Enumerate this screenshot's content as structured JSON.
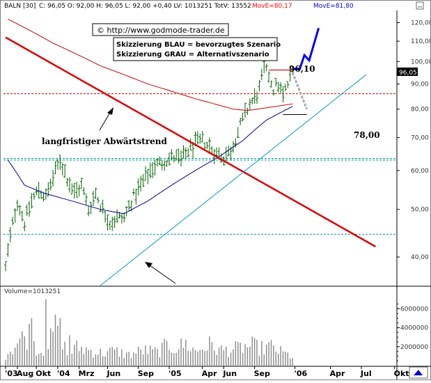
{
  "header": {
    "symbol_period": "BALN [30]",
    "ohlc": "C: 96,05 O: 92,00 H: 96,05 L: 92,00 +0,40 LV: 1013251 TotV: 13552",
    "ma1_label": "MovE=80,17",
    "ma2_label": "MovE=81,80",
    "ma1_color": "#ff0000",
    "ma2_color": "#0000cc"
  },
  "copyright": "© http://www.godmode-trader.de",
  "legend": {
    "line1": "Skizzierung BLAU = bevorzugtes Szenario",
    "line2": "Skizzierung GRAU = Alternativszenario"
  },
  "annotations": {
    "high_label": "96,10",
    "support_label": "78,00",
    "trend_label": "langfristiger Abwärtstrend"
  },
  "last_price_tag": "96,05",
  "volume_label": "Volume=1013251",
  "colors": {
    "price_bars": "#006400",
    "ma_red": "#cc0000",
    "ma_blue": "#000099",
    "downtrend": "#dd0000",
    "uptrend": "#0099cc",
    "scenario_blue": "#0000ff",
    "scenario_grey": "#aaaaaa",
    "dashed_red": "#cc0000",
    "dashed_teal": "#009999"
  },
  "chart_data": {
    "type": "ohlc",
    "price_axis": {
      "scale": "log",
      "ylim": [
        35,
        125
      ],
      "ticks": [
        40,
        50,
        60,
        70,
        80,
        90,
        100,
        110,
        120
      ],
      "tick_labels": [
        "40,00",
        "50,00",
        "60,00",
        "70,00",
        "80,00",
        "90,00",
        "100,00",
        "110,00",
        "120,00"
      ]
    },
    "volume_axis": {
      "ylim": [
        0,
        7500000
      ],
      "ticks": [
        2000000,
        4000000,
        6000000
      ],
      "tick_labels": [
        "2000000",
        "4000000",
        "6000000"
      ]
    },
    "x_axis": {
      "labels": [
        "'03",
        "Aug",
        "Okt",
        "'04",
        "Mrz",
        "Jun",
        "Sep",
        "'05",
        "Apr",
        "Jun",
        "Sep",
        "'06",
        "Apr",
        "Jul",
        "Okt"
      ],
      "label_weeks": [
        0,
        5,
        13,
        22,
        31,
        43,
        56,
        69,
        83,
        92,
        105,
        122,
        137,
        150,
        164
      ]
    },
    "price_anchors": [
      [
        0,
        38
      ],
      [
        2,
        44
      ],
      [
        5,
        52
      ],
      [
        8,
        47
      ],
      [
        11,
        52
      ],
      [
        14,
        55
      ],
      [
        17,
        53
      ],
      [
        20,
        58
      ],
      [
        23,
        63
      ],
      [
        26,
        58
      ],
      [
        29,
        54
      ],
      [
        32,
        56
      ],
      [
        35,
        50
      ],
      [
        38,
        54
      ],
      [
        41,
        50
      ],
      [
        44,
        47
      ],
      [
        47,
        48
      ],
      [
        50,
        48
      ],
      [
        53,
        52
      ],
      [
        56,
        55
      ],
      [
        59,
        58
      ],
      [
        62,
        61
      ],
      [
        65,
        62
      ],
      [
        68,
        63
      ],
      [
        71,
        64
      ],
      [
        74,
        63
      ],
      [
        77,
        66
      ],
      [
        80,
        68
      ],
      [
        83,
        69
      ],
      [
        86,
        67
      ],
      [
        89,
        65
      ],
      [
        92,
        64
      ],
      [
        95,
        66
      ],
      [
        97,
        70
      ],
      [
        99,
        74
      ],
      [
        101,
        78
      ],
      [
        103,
        82
      ],
      [
        105,
        84
      ],
      [
        107,
        88
      ],
      [
        109,
        96
      ],
      [
        111,
        94
      ],
      [
        113,
        88
      ],
      [
        115,
        90
      ],
      [
        117,
        85
      ],
      [
        119,
        90
      ],
      [
        121,
        96
      ]
    ],
    "volume_anchors": [
      [
        0,
        1200000
      ],
      [
        6,
        2800000
      ],
      [
        10,
        3500000
      ],
      [
        14,
        1500000
      ],
      [
        18,
        2200000
      ],
      [
        22,
        4800000
      ],
      [
        26,
        1200000
      ],
      [
        30,
        2000000
      ],
      [
        34,
        1800000
      ],
      [
        40,
        1400000
      ],
      [
        46,
        1600000
      ],
      [
        52,
        1200000
      ],
      [
        58,
        1700000
      ],
      [
        64,
        1500000
      ],
      [
        68,
        2200000
      ],
      [
        72,
        2000000
      ],
      [
        76,
        2400000
      ],
      [
        80,
        1600000
      ],
      [
        86,
        2300000
      ],
      [
        90,
        1700000
      ],
      [
        96,
        1800000
      ],
      [
        100,
        2000000
      ],
      [
        104,
        2200000
      ],
      [
        108,
        1900000
      ],
      [
        112,
        2100000
      ],
      [
        116,
        1500000
      ],
      [
        121,
        1000000
      ]
    ],
    "volume_spikes": [
      [
        11,
        5000000
      ],
      [
        17,
        7000000
      ],
      [
        27,
        3200000
      ]
    ],
    "moving_average_red": [
      [
        1,
        122
      ],
      [
        20,
        109
      ],
      [
        40,
        98
      ],
      [
        60,
        90
      ],
      [
        80,
        84
      ],
      [
        96,
        80
      ],
      [
        102,
        79.5
      ],
      [
        110,
        80.5
      ],
      [
        121,
        82
      ]
    ],
    "moving_average_blue": [
      [
        1,
        63
      ],
      [
        8,
        56
      ],
      [
        16,
        54
      ],
      [
        28,
        52
      ],
      [
        40,
        50
      ],
      [
        50,
        49
      ],
      [
        60,
        52
      ],
      [
        70,
        56
      ],
      [
        80,
        60
      ],
      [
        90,
        64
      ],
      [
        100,
        69
      ],
      [
        110,
        76
      ],
      [
        121,
        81
      ]
    ],
    "downtrend_line": [
      [
        0,
        112
      ],
      [
        156,
        42
      ]
    ],
    "uptrend_line": [
      [
        40,
        35
      ],
      [
        152,
        94
      ]
    ],
    "resistance_dashed_red": 86,
    "support_dashed_teal": [
      63.5,
      63,
      44.5
    ],
    "high_level": 96.1,
    "support_level": 78,
    "scenario_blue": [
      [
        121,
        96.5
      ],
      [
        124,
        96.5
      ],
      [
        126,
        103
      ],
      [
        128,
        100.5
      ],
      [
        132,
        117
      ]
    ],
    "scenario_grey": [
      [
        121,
        95
      ],
      [
        127,
        80
      ]
    ]
  }
}
